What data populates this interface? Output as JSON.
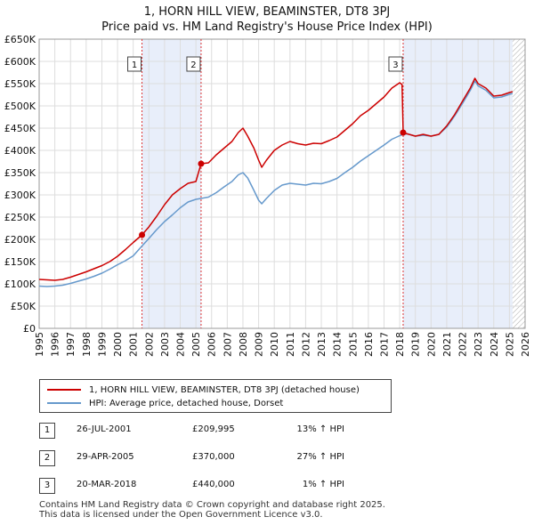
{
  "title_line1": "1, HORN HILL VIEW, BEAMINSTER, DT8 3PJ",
  "title_line2": "Price paid vs. HM Land Registry's House Price Index (HPI)",
  "colors": {
    "property": "#cc0000",
    "hpi": "#6699cc",
    "shade": "#e8eefa",
    "vline": "#dd3333",
    "grid": "#dddddd"
  },
  "chart_data": {
    "type": "line",
    "title": "1, HORN HILL VIEW, BEAMINSTER, DT8 3PJ — Price paid vs. HM Land Registry's House Price Index (HPI)",
    "xlabel": "",
    "ylabel": "",
    "xlim": [
      1995,
      2026
    ],
    "ylim": [
      0,
      650000
    ],
    "grid": true,
    "x_ticks": [
      "1995",
      "1996",
      "1997",
      "1998",
      "1999",
      "2000",
      "2001",
      "2002",
      "2003",
      "2004",
      "2005",
      "2006",
      "2007",
      "2008",
      "2009",
      "2010",
      "2011",
      "2012",
      "2013",
      "2014",
      "2015",
      "2016",
      "2017",
      "2018",
      "2019",
      "2020",
      "2021",
      "2022",
      "2023",
      "2024",
      "2025",
      "2026"
    ],
    "y_ticks": [
      {
        "value": 0,
        "label": "£0"
      },
      {
        "value": 50000,
        "label": "£50K"
      },
      {
        "value": 100000,
        "label": "£100K"
      },
      {
        "value": 150000,
        "label": "£150K"
      },
      {
        "value": 200000,
        "label": "£200K"
      },
      {
        "value": 250000,
        "label": "£250K"
      },
      {
        "value": 300000,
        "label": "£300K"
      },
      {
        "value": 350000,
        "label": "£350K"
      },
      {
        "value": 400000,
        "label": "£400K"
      },
      {
        "value": 450000,
        "label": "£450K"
      },
      {
        "value": 500000,
        "label": "£500K"
      },
      {
        "value": 550000,
        "label": "£550K"
      },
      {
        "value": 600000,
        "label": "£600K"
      },
      {
        "value": 650000,
        "label": "£650K"
      }
    ],
    "shaded_periods": [
      [
        2001.56,
        2005.33
      ],
      [
        2018.22,
        2025.2
      ]
    ],
    "hatched_from": 2025.2,
    "series": [
      {
        "name": "1, HORN HILL VIEW, BEAMINSTER, DT8 3PJ (detached house)",
        "color": "#cc0000",
        "points": [
          [
            1995.0,
            110000
          ],
          [
            1995.5,
            109000
          ],
          [
            1996.0,
            108000
          ],
          [
            1996.5,
            110000
          ],
          [
            1997.0,
            115000
          ],
          [
            1997.5,
            121000
          ],
          [
            1998.0,
            127000
          ],
          [
            1998.5,
            134000
          ],
          [
            1999.0,
            141000
          ],
          [
            1999.5,
            150000
          ],
          [
            2000.0,
            162000
          ],
          [
            2000.5,
            177000
          ],
          [
            2001.0,
            193000
          ],
          [
            2001.56,
            209995
          ],
          [
            2002.0,
            228000
          ],
          [
            2002.5,
            252000
          ],
          [
            2003.0,
            278000
          ],
          [
            2003.5,
            300000
          ],
          [
            2004.0,
            314000
          ],
          [
            2004.5,
            326000
          ],
          [
            2005.0,
            330000
          ],
          [
            2005.33,
            370000
          ],
          [
            2005.8,
            372000
          ],
          [
            2006.3,
            390000
          ],
          [
            2006.8,
            405000
          ],
          [
            2007.3,
            420000
          ],
          [
            2007.7,
            440000
          ],
          [
            2008.0,
            450000
          ],
          [
            2008.3,
            432000
          ],
          [
            2008.7,
            405000
          ],
          [
            2009.0,
            378000
          ],
          [
            2009.2,
            362000
          ],
          [
            2009.5,
            378000
          ],
          [
            2010.0,
            400000
          ],
          [
            2010.5,
            412000
          ],
          [
            2011.0,
            420000
          ],
          [
            2011.5,
            415000
          ],
          [
            2012.0,
            412000
          ],
          [
            2012.5,
            416000
          ],
          [
            2013.0,
            415000
          ],
          [
            2013.5,
            422000
          ],
          [
            2014.0,
            430000
          ],
          [
            2014.5,
            445000
          ],
          [
            2015.0,
            460000
          ],
          [
            2015.5,
            478000
          ],
          [
            2016.0,
            490000
          ],
          [
            2016.5,
            505000
          ],
          [
            2017.0,
            520000
          ],
          [
            2017.5,
            540000
          ],
          [
            2018.0,
            552000
          ],
          [
            2018.15,
            548000
          ],
          [
            2018.22,
            440000
          ],
          [
            2018.5,
            437000
          ],
          [
            2019.0,
            432000
          ],
          [
            2019.5,
            436000
          ],
          [
            2020.0,
            432000
          ],
          [
            2020.5,
            436000
          ],
          [
            2021.0,
            455000
          ],
          [
            2021.5,
            480000
          ],
          [
            2022.0,
            510000
          ],
          [
            2022.5,
            540000
          ],
          [
            2022.8,
            562000
          ],
          [
            2023.0,
            550000
          ],
          [
            2023.5,
            540000
          ],
          [
            2024.0,
            522000
          ],
          [
            2024.5,
            524000
          ],
          [
            2025.0,
            530000
          ],
          [
            2025.2,
            532000
          ]
        ]
      },
      {
        "name": "HPI: Average price, detached house, Dorset",
        "color": "#6699cc",
        "points": [
          [
            1995.0,
            95000
          ],
          [
            1995.5,
            94000
          ],
          [
            1996.0,
            95000
          ],
          [
            1996.5,
            97000
          ],
          [
            1997.0,
            101000
          ],
          [
            1997.5,
            106000
          ],
          [
            1998.0,
            111000
          ],
          [
            1998.5,
            117000
          ],
          [
            1999.0,
            124000
          ],
          [
            1999.5,
            133000
          ],
          [
            2000.0,
            143000
          ],
          [
            2000.5,
            152000
          ],
          [
            2001.0,
            163000
          ],
          [
            2001.56,
            185000
          ],
          [
            2002.0,
            202000
          ],
          [
            2002.5,
            222000
          ],
          [
            2003.0,
            240000
          ],
          [
            2003.5,
            255000
          ],
          [
            2004.0,
            271000
          ],
          [
            2004.5,
            284000
          ],
          [
            2005.0,
            290000
          ],
          [
            2005.33,
            292000
          ],
          [
            2005.8,
            295000
          ],
          [
            2006.3,
            305000
          ],
          [
            2006.8,
            318000
          ],
          [
            2007.3,
            330000
          ],
          [
            2007.7,
            345000
          ],
          [
            2008.0,
            350000
          ],
          [
            2008.3,
            338000
          ],
          [
            2008.7,
            310000
          ],
          [
            2009.0,
            288000
          ],
          [
            2009.2,
            280000
          ],
          [
            2009.5,
            292000
          ],
          [
            2010.0,
            310000
          ],
          [
            2010.5,
            322000
          ],
          [
            2011.0,
            326000
          ],
          [
            2011.5,
            324000
          ],
          [
            2012.0,
            322000
          ],
          [
            2012.5,
            326000
          ],
          [
            2013.0,
            325000
          ],
          [
            2013.5,
            330000
          ],
          [
            2014.0,
            337000
          ],
          [
            2014.5,
            350000
          ],
          [
            2015.0,
            362000
          ],
          [
            2015.5,
            376000
          ],
          [
            2016.0,
            388000
          ],
          [
            2016.5,
            400000
          ],
          [
            2017.0,
            412000
          ],
          [
            2017.5,
            425000
          ],
          [
            2018.0,
            433000
          ],
          [
            2018.22,
            436000
          ],
          [
            2018.5,
            437000
          ],
          [
            2019.0,
            432000
          ],
          [
            2019.5,
            434000
          ],
          [
            2020.0,
            432000
          ],
          [
            2020.5,
            436000
          ],
          [
            2021.0,
            452000
          ],
          [
            2021.5,
            477000
          ],
          [
            2022.0,
            505000
          ],
          [
            2022.5,
            535000
          ],
          [
            2022.8,
            556000
          ],
          [
            2023.0,
            545000
          ],
          [
            2023.5,
            535000
          ],
          [
            2024.0,
            518000
          ],
          [
            2024.5,
            520000
          ],
          [
            2025.0,
            526000
          ],
          [
            2025.2,
            528000
          ]
        ]
      }
    ],
    "sales": [
      {
        "id": "1",
        "x": 2001.56,
        "price": 209995
      },
      {
        "id": "2",
        "x": 2005.33,
        "price": 370000
      },
      {
        "id": "3",
        "x": 2018.22,
        "price": 440000
      }
    ]
  },
  "legend": {
    "property_label": "1, HORN HILL VIEW, BEAMINSTER, DT8 3PJ (detached house)",
    "hpi_label": "HPI: Average price, detached house, Dorset"
  },
  "sales_table": [
    {
      "id": "1",
      "date": "26-JUL-2001",
      "price": "£209,995",
      "hpi": "13% ↑ HPI"
    },
    {
      "id": "2",
      "date": "29-APR-2005",
      "price": "£370,000",
      "hpi": "27% ↑ HPI"
    },
    {
      "id": "3",
      "date": "20-MAR-2018",
      "price": "£440,000",
      "hpi": "1% ↑ HPI"
    }
  ],
  "footer": {
    "line1": "Contains HM Land Registry data © Crown copyright and database right 2025.",
    "line2": "This data is licensed under the Open Government Licence v3.0."
  }
}
